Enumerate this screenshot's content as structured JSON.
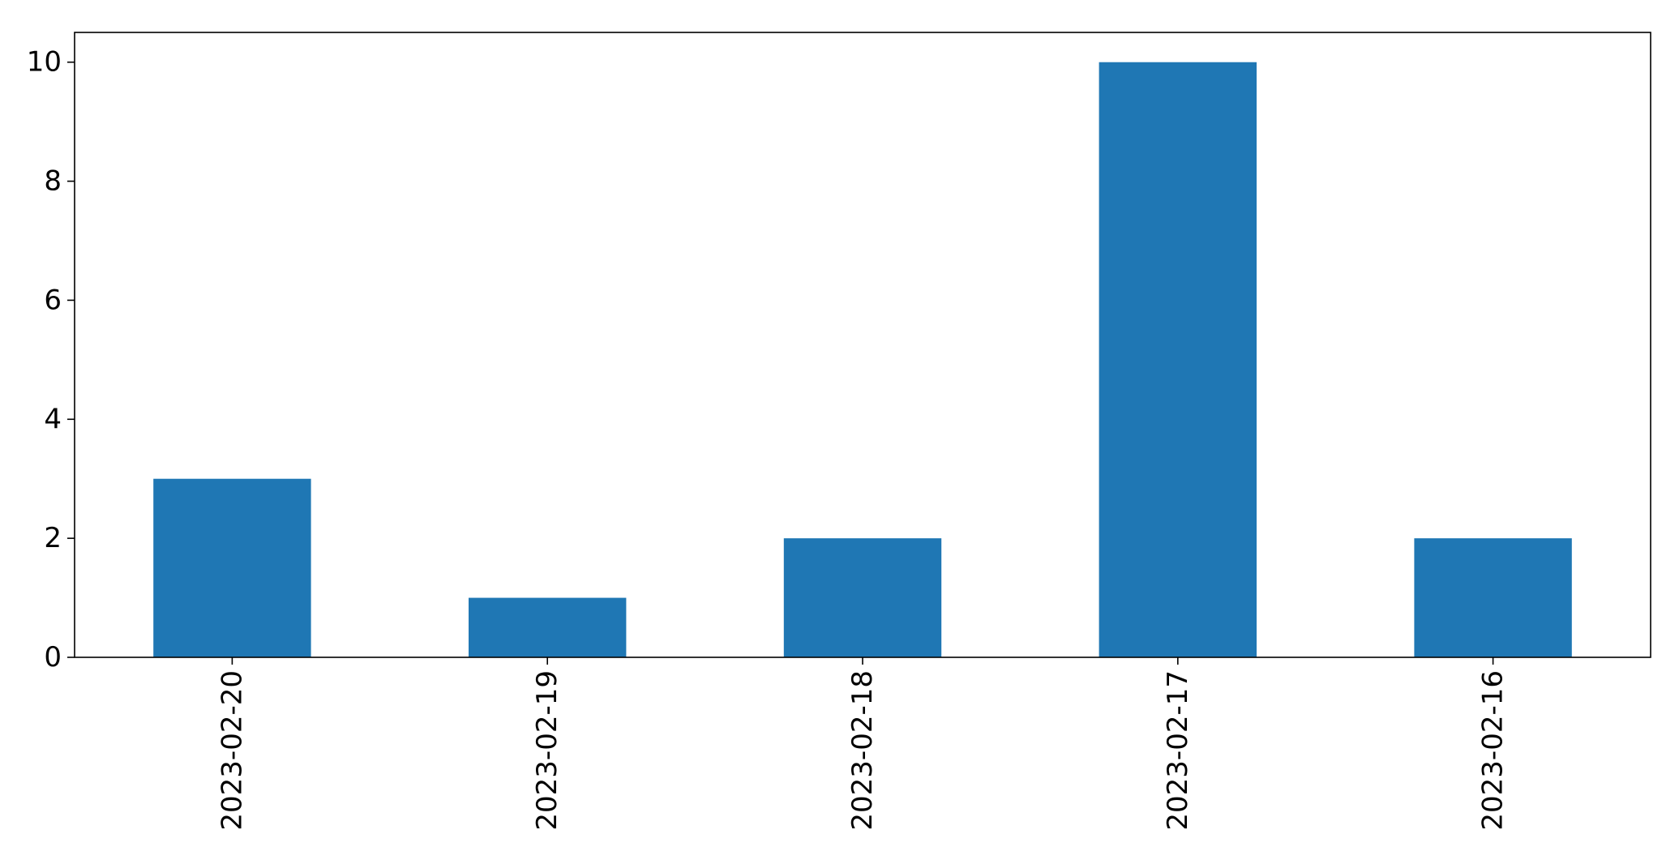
{
  "chart_data": {
    "type": "bar",
    "categories": [
      "2023-02-20",
      "2023-02-19",
      "2023-02-18",
      "2023-02-17",
      "2023-02-16"
    ],
    "values": [
      3,
      1,
      2,
      10,
      2
    ],
    "ylim": [
      0,
      10.5
    ],
    "yticks": [
      0,
      2,
      4,
      6,
      8,
      10
    ],
    "bar_color": "#1f77b4",
    "grid": false,
    "legend": "none",
    "xtick_rotation": "vertical"
  }
}
